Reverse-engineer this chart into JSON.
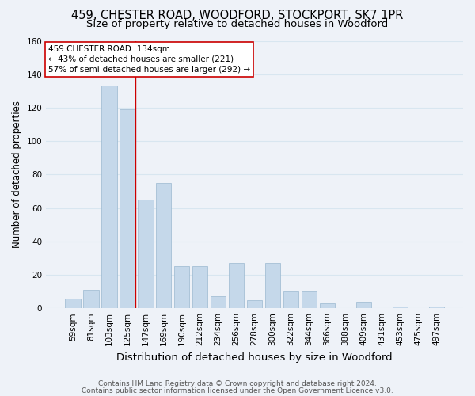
{
  "title": "459, CHESTER ROAD, WOODFORD, STOCKPORT, SK7 1PR",
  "subtitle": "Size of property relative to detached houses in Woodford",
  "xlabel": "Distribution of detached houses by size in Woodford",
  "ylabel": "Number of detached properties",
  "categories": [
    "59sqm",
    "81sqm",
    "103sqm",
    "125sqm",
    "147sqm",
    "169sqm",
    "190sqm",
    "212sqm",
    "234sqm",
    "256sqm",
    "278sqm",
    "300sqm",
    "322sqm",
    "344sqm",
    "366sqm",
    "388sqm",
    "409sqm",
    "431sqm",
    "453sqm",
    "475sqm",
    "497sqm"
  ],
  "values": [
    6,
    11,
    133,
    119,
    65,
    75,
    25,
    25,
    7,
    27,
    5,
    27,
    10,
    10,
    3,
    0,
    4,
    0,
    1,
    0,
    1
  ],
  "bar_color": "#c5d8ea",
  "bar_edge_color": "#9ab8d0",
  "grid_color": "#d8e6f0",
  "background_color": "#eef2f8",
  "annotation_box_color": "#ffffff",
  "annotation_line_color": "#cc0000",
  "annotation_text": "459 CHESTER ROAD: 134sqm\n← 43% of detached houses are smaller (221)\n57% of semi-detached houses are larger (292) →",
  "ylim": [
    0,
    160
  ],
  "yticks": [
    0,
    20,
    40,
    60,
    80,
    100,
    120,
    140,
    160
  ],
  "footnote1": "Contains HM Land Registry data © Crown copyright and database right 2024.",
  "footnote2": "Contains public sector information licensed under the Open Government Licence v3.0.",
  "title_fontsize": 10.5,
  "subtitle_fontsize": 9.5,
  "xlabel_fontsize": 9.5,
  "ylabel_fontsize": 8.5,
  "tick_fontsize": 7.5,
  "annotation_fontsize": 7.5,
  "footnote_fontsize": 6.5
}
